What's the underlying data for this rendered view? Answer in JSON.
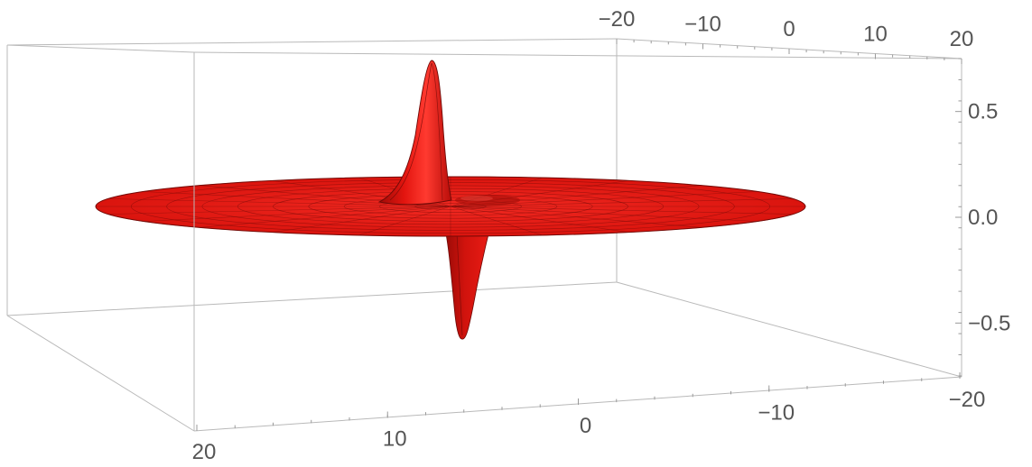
{
  "chart_data": {
    "type": "surface3d",
    "title": "",
    "xlabel": "",
    "ylabel": "",
    "zlabel": "",
    "surface": {
      "domain": "disk",
      "radius": 20,
      "peak": {
        "x": 0,
        "y": 1,
        "z": 0.75
      },
      "trough": {
        "x": 0,
        "y": -1,
        "z": -0.58
      }
    },
    "axes": {
      "top_axis": {
        "ticks": [
          "−20",
          "−10",
          "0",
          "10",
          "20"
        ],
        "range": [
          -20,
          20
        ]
      },
      "bottom_axis": {
        "ticks": [
          "20",
          "10",
          "0",
          "−10",
          "−20"
        ],
        "range": [
          20,
          -20
        ]
      },
      "z_axis": {
        "ticks": [
          "0.5",
          "0.0",
          "−0.5"
        ],
        "range": [
          -0.75,
          0.75
        ]
      }
    },
    "colors": {
      "surface": "#e8140f",
      "surface_shade": "#b30c08",
      "mesh": "#6e0a07",
      "box": "#b9b9b9",
      "tick_text": "#555555"
    },
    "grid": false
  }
}
